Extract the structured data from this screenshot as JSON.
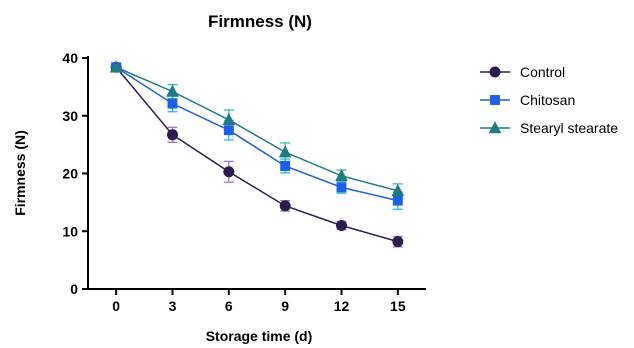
{
  "chart_data": {
    "type": "line",
    "title": "Firmness (N)",
    "xlabel": "Storage time (d)",
    "ylabel": "Firmness (N)",
    "x": [
      0,
      3,
      6,
      9,
      12,
      15
    ],
    "x_ticks": [
      "0",
      "3",
      "6",
      "9",
      "12",
      "15"
    ],
    "y_ticks": [
      "0",
      "10",
      "20",
      "30",
      "40"
    ],
    "xlim": [
      -1.5,
      16.5
    ],
    "ylim": [
      0,
      40
    ],
    "grid": false,
    "legend_position": "right",
    "series": [
      {
        "name": "Control",
        "marker": "circle",
        "color": "#2b1d4e",
        "error_color": "#a276c2",
        "values": [
          38.4,
          26.7,
          20.3,
          14.4,
          11.0,
          8.2
        ],
        "errors": [
          0.6,
          1.3,
          1.8,
          0.9,
          0.7,
          0.9
        ]
      },
      {
        "name": "Chitosan",
        "marker": "square",
        "color": "#1f5fe6",
        "error_color": "#29b6e8",
        "values": [
          38.4,
          32.1,
          27.5,
          21.3,
          17.6,
          15.3
        ],
        "errors": [
          0.6,
          1.4,
          1.7,
          1.2,
          1.0,
          1.5
        ]
      },
      {
        "name": "Stearyl stearate",
        "marker": "triangle",
        "color": "#1f7a82",
        "error_color": "#39b8ad",
        "values": [
          38.4,
          34.2,
          29.3,
          23.7,
          19.6,
          17.0
        ],
        "errors": [
          0.6,
          1.2,
          1.7,
          1.6,
          1.0,
          1.2
        ]
      }
    ]
  }
}
